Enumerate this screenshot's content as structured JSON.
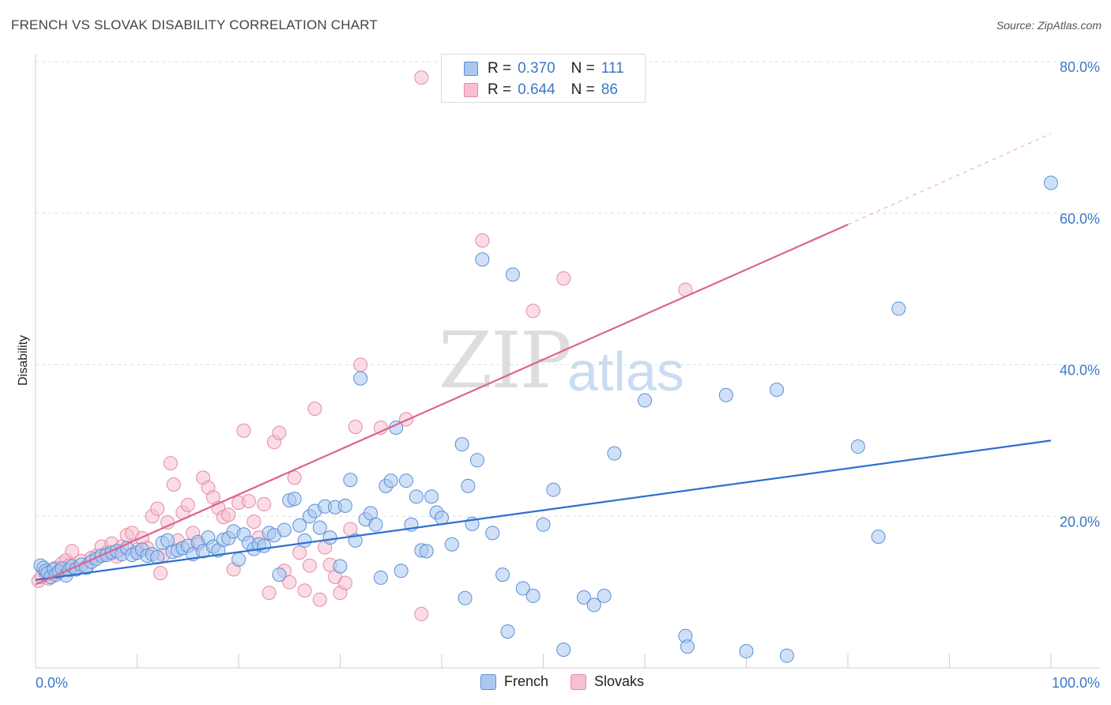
{
  "title": "FRENCH VS SLOVAK DISABILITY CORRELATION CHART",
  "source": "Source: ZipAtlas.com",
  "watermark": {
    "zip": "ZIP",
    "atlas": "atlas"
  },
  "legend": {
    "french": {
      "r_label": "R =",
      "r_value": "0.370",
      "n_label": "N =",
      "n_value": "111"
    },
    "slovaks": {
      "r_label": "R =",
      "r_value": "0.644",
      "n_label": "N =",
      "n_value": "86"
    }
  },
  "bottom_legend": {
    "french": "French",
    "slovaks": "Slovaks"
  },
  "colors": {
    "french_fill": "#a9c8f0",
    "french_stroke": "#5b8fd6",
    "french_line": "#2e6fd0",
    "slovaks_fill": "#f8bfd0",
    "slovaks_stroke": "#e48aa6",
    "slovaks_line": "#e0628e",
    "tick_label": "#3b78c7",
    "grid": "#dedede"
  },
  "chart_data": {
    "type": "scatter",
    "title": "FRENCH VS SLOVAK DISABILITY CORRELATION CHART",
    "xlabel": "",
    "ylabel": "Disability",
    "xlim": [
      0,
      100
    ],
    "ylim": [
      0,
      80
    ],
    "x_tick_labels": [
      "0.0%",
      "100.0%"
    ],
    "y_ticks": [
      20,
      40,
      60,
      80
    ],
    "y_tick_labels": [
      "20.0%",
      "40.0%",
      "60.0%",
      "80.0%"
    ],
    "grid": true,
    "legend_position": "top-center",
    "series": [
      {
        "name": "French",
        "r": 0.37,
        "n": 111,
        "trend": {
          "x": [
            0,
            100
          ],
          "y": [
            11.6,
            30.0
          ]
        },
        "points": [
          [
            0.5,
            13.5
          ],
          [
            0.8,
            13.2
          ],
          [
            1.0,
            12.8
          ],
          [
            1.2,
            12.5
          ],
          [
            1.5,
            12.0
          ],
          [
            1.8,
            13.0
          ],
          [
            2.0,
            12.3
          ],
          [
            2.3,
            12.7
          ],
          [
            2.6,
            13.1
          ],
          [
            3.0,
            12.2
          ],
          [
            3.3,
            12.9
          ],
          [
            3.6,
            13.4
          ],
          [
            4.0,
            13.0
          ],
          [
            4.5,
            13.6
          ],
          [
            5.0,
            13.2
          ],
          [
            5.5,
            14.0
          ],
          [
            6.0,
            14.4
          ],
          [
            6.5,
            14.8
          ],
          [
            7.0,
            14.9
          ],
          [
            7.5,
            15.2
          ],
          [
            8.0,
            15.4
          ],
          [
            8.5,
            15.0
          ],
          [
            9.0,
            15.8
          ],
          [
            9.5,
            14.9
          ],
          [
            10.0,
            15.2
          ],
          [
            10.5,
            15.6
          ],
          [
            11.0,
            14.8
          ],
          [
            11.5,
            15.0
          ],
          [
            12.0,
            14.6
          ],
          [
            12.5,
            16.5
          ],
          [
            13.0,
            16.8
          ],
          [
            13.5,
            15.3
          ],
          [
            14.0,
            15.5
          ],
          [
            14.5,
            15.8
          ],
          [
            15.0,
            16.1
          ],
          [
            15.5,
            15.0
          ],
          [
            16.0,
            16.6
          ],
          [
            16.5,
            15.4
          ],
          [
            17.0,
            17.2
          ],
          [
            17.5,
            16.0
          ],
          [
            18.0,
            15.5
          ],
          [
            18.5,
            16.9
          ],
          [
            19.0,
            17.1
          ],
          [
            19.5,
            18.0
          ],
          [
            20.0,
            14.3
          ],
          [
            20.5,
            17.6
          ],
          [
            21.0,
            16.5
          ],
          [
            21.5,
            15.7
          ],
          [
            22.0,
            16.3
          ],
          [
            22.5,
            16.1
          ],
          [
            23.0,
            17.8
          ],
          [
            23.5,
            17.5
          ],
          [
            24.0,
            12.3
          ],
          [
            24.5,
            18.2
          ],
          [
            25.0,
            22.1
          ],
          [
            25.5,
            22.3
          ],
          [
            26.0,
            18.8
          ],
          [
            26.5,
            16.8
          ],
          [
            27.0,
            20.0
          ],
          [
            27.5,
            20.7
          ],
          [
            28.0,
            18.5
          ],
          [
            28.5,
            21.3
          ],
          [
            29.0,
            17.2
          ],
          [
            29.5,
            21.2
          ],
          [
            30.0,
            13.4
          ],
          [
            30.5,
            21.4
          ],
          [
            31.0,
            24.8
          ],
          [
            31.5,
            16.8
          ],
          [
            32.0,
            38.2
          ],
          [
            32.5,
            19.6
          ],
          [
            33.0,
            20.4
          ],
          [
            33.5,
            18.9
          ],
          [
            34.0,
            11.9
          ],
          [
            34.5,
            24.0
          ],
          [
            35.0,
            24.7
          ],
          [
            35.5,
            31.7
          ],
          [
            36.0,
            12.8
          ],
          [
            36.5,
            24.7
          ],
          [
            37.0,
            18.9
          ],
          [
            37.5,
            22.6
          ],
          [
            38.0,
            15.5
          ],
          [
            38.5,
            15.4
          ],
          [
            39.0,
            22.6
          ],
          [
            39.5,
            20.5
          ],
          [
            40.0,
            19.8
          ],
          [
            41.0,
            16.3
          ],
          [
            42.0,
            29.5
          ],
          [
            42.3,
            9.2
          ],
          [
            42.6,
            24.0
          ],
          [
            43.0,
            19.0
          ],
          [
            43.5,
            27.4
          ],
          [
            44.0,
            53.9
          ],
          [
            45.0,
            17.8
          ],
          [
            46.0,
            12.3
          ],
          [
            46.5,
            4.8
          ],
          [
            47.0,
            51.9
          ],
          [
            48.0,
            10.5
          ],
          [
            49.0,
            9.5
          ],
          [
            50.0,
            18.9
          ],
          [
            51.0,
            23.5
          ],
          [
            52.0,
            2.4
          ],
          [
            54.0,
            9.3
          ],
          [
            55.0,
            8.3
          ],
          [
            56.0,
            9.5
          ],
          [
            57.0,
            28.3
          ],
          [
            60.0,
            35.3
          ],
          [
            64.0,
            4.2
          ],
          [
            64.2,
            2.8
          ],
          [
            68.0,
            36.0
          ],
          [
            70.0,
            2.2
          ],
          [
            73.0,
            36.7
          ],
          [
            74.0,
            1.6
          ],
          [
            81.0,
            29.2
          ],
          [
            83.0,
            17.3
          ],
          [
            85.0,
            47.4
          ],
          [
            100.0,
            64.0
          ]
        ]
      },
      {
        "name": "Slovaks",
        "r": 0.644,
        "n": 86,
        "trend": {
          "x": [
            0,
            80
          ],
          "y": [
            11.0,
            58.5
          ],
          "dashed_to": {
            "x": 100,
            "y": 70.5
          }
        },
        "points": [
          [
            0.3,
            11.5
          ],
          [
            0.6,
            12.0
          ],
          [
            1.0,
            12.4
          ],
          [
            1.3,
            11.8
          ],
          [
            1.6,
            12.7
          ],
          [
            2.0,
            13.2
          ],
          [
            2.3,
            12.6
          ],
          [
            2.6,
            13.8
          ],
          [
            3.0,
            14.2
          ],
          [
            3.3,
            13.5
          ],
          [
            3.6,
            15.4
          ],
          [
            4.0,
            13.0
          ],
          [
            4.5,
            14.1
          ],
          [
            5.0,
            13.4
          ],
          [
            5.5,
            14.5
          ],
          [
            6.0,
            14.8
          ],
          [
            6.5,
            16.0
          ],
          [
            7.0,
            15.2
          ],
          [
            7.5,
            16.4
          ],
          [
            8.0,
            14.7
          ],
          [
            8.5,
            16.0
          ],
          [
            9.0,
            17.5
          ],
          [
            9.5,
            17.8
          ],
          [
            10.0,
            15.6
          ],
          [
            10.5,
            17.1
          ],
          [
            11.0,
            15.8
          ],
          [
            11.5,
            20.0
          ],
          [
            12.0,
            21.0
          ],
          [
            12.3,
            12.5
          ],
          [
            12.6,
            14.9
          ],
          [
            13.0,
            19.2
          ],
          [
            13.3,
            27.0
          ],
          [
            13.6,
            24.2
          ],
          [
            14.0,
            16.8
          ],
          [
            14.5,
            20.5
          ],
          [
            15.0,
            21.5
          ],
          [
            15.5,
            17.8
          ],
          [
            16.0,
            16.3
          ],
          [
            16.5,
            25.1
          ],
          [
            17.0,
            23.8
          ],
          [
            17.5,
            22.5
          ],
          [
            18.0,
            21.1
          ],
          [
            18.5,
            19.9
          ],
          [
            19.0,
            20.2
          ],
          [
            19.5,
            13.0
          ],
          [
            20.0,
            21.8
          ],
          [
            20.5,
            31.3
          ],
          [
            21.0,
            22.0
          ],
          [
            21.5,
            19.3
          ],
          [
            22.0,
            17.2
          ],
          [
            22.5,
            21.6
          ],
          [
            23.0,
            9.9
          ],
          [
            23.5,
            29.8
          ],
          [
            24.0,
            31.0
          ],
          [
            24.5,
            12.8
          ],
          [
            25.0,
            11.3
          ],
          [
            25.5,
            25.1
          ],
          [
            26.0,
            15.2
          ],
          [
            26.5,
            10.2
          ],
          [
            27.0,
            13.5
          ],
          [
            27.5,
            34.2
          ],
          [
            28.0,
            9.0
          ],
          [
            28.5,
            15.9
          ],
          [
            29.0,
            13.6
          ],
          [
            29.5,
            12.0
          ],
          [
            30.0,
            9.9
          ],
          [
            30.5,
            11.2
          ],
          [
            31.0,
            18.3
          ],
          [
            31.5,
            31.8
          ],
          [
            32.0,
            40.0
          ],
          [
            34.0,
            31.7
          ],
          [
            36.5,
            32.8
          ],
          [
            38.0,
            7.1
          ],
          [
            38.0,
            77.9
          ],
          [
            44.0,
            56.4
          ],
          [
            49.0,
            47.1
          ],
          [
            52.0,
            51.4
          ],
          [
            64.0,
            49.9
          ]
        ]
      }
    ]
  }
}
